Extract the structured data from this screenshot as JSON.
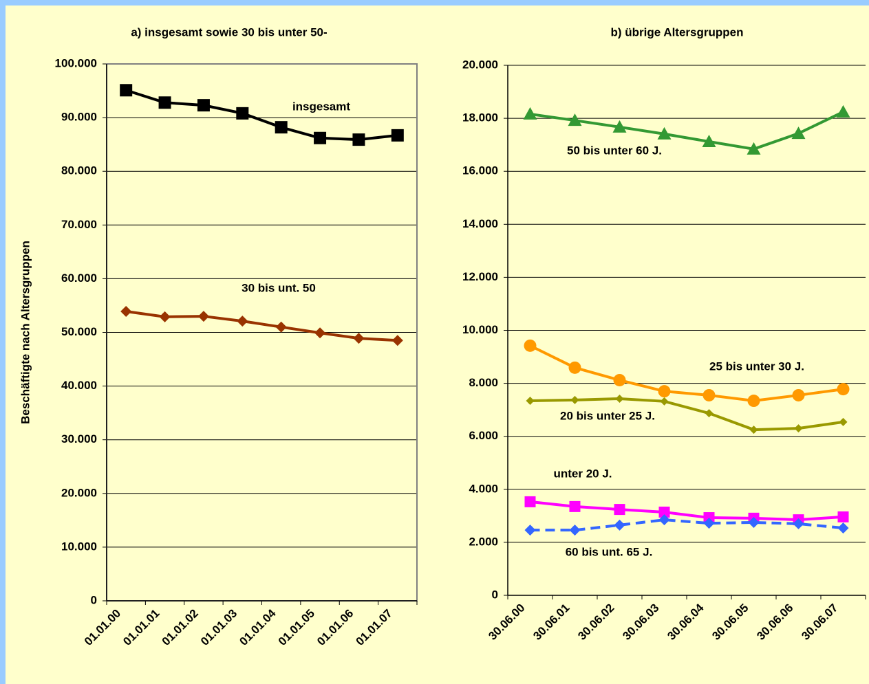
{
  "chart_data": [
    {
      "type": "line",
      "title": "a) insgesamt sowie 30 bis unter 50-",
      "y_label": "Beschäftigte nach Altersgruppen",
      "categories": [
        "01.01.00",
        "01.01.01",
        "01.01.02",
        "01.01.03",
        "01.01.04",
        "01.01.05",
        "01.01.06",
        "01.01.07"
      ],
      "ylim": [
        0,
        100000
      ],
      "yticks": [
        0,
        {
          "value": 10000,
          "label": "10.000"
        },
        {
          "value": 20000,
          "label": "20.000"
        },
        {
          "value": 30000,
          "label": "30.000"
        },
        {
          "value": 40000,
          "label": "40.000"
        },
        {
          "value": 50000,
          "label": "50.000"
        },
        {
          "value": 60000,
          "label": "60.000"
        },
        {
          "value": 70000,
          "label": "70.000"
        },
        {
          "value": 80000,
          "label": "80.000"
        },
        {
          "value": 90000,
          "label": "90.000"
        },
        {
          "value": 100000,
          "label": "100.000"
        }
      ],
      "grid": true,
      "series": [
        {
          "name": "insgesamt",
          "color": "#000000",
          "marker": "square",
          "values": [
            95100,
            92800,
            92300,
            90800,
            88200,
            86200,
            85900,
            86700
          ]
        },
        {
          "name": "30 bis unt. 50",
          "color": "#993300",
          "marker": "diamond",
          "values": [
            53900,
            52900,
            53000,
            52100,
            51000,
            49900,
            48900,
            48500
          ]
        }
      ]
    },
    {
      "type": "line",
      "title": "b) übrige Altersgruppen",
      "categories": [
        "30.06.00",
        "30.06.01",
        "30.06.02",
        "30.06.03",
        "30.06.04",
        "30.06.05",
        "30.06.06",
        "30.06.07"
      ],
      "ylim": [
        0,
        20000
      ],
      "yticks": [
        0,
        {
          "value": 2000,
          "label": "2.000"
        },
        {
          "value": 4000,
          "label": "4.000"
        },
        {
          "value": 6000,
          "label": "6.000"
        },
        {
          "value": 8000,
          "label": "8.000"
        },
        {
          "value": 10000,
          "label": "10.000"
        },
        {
          "value": 12000,
          "label": "12.000"
        },
        {
          "value": 14000,
          "label": "14.000"
        },
        {
          "value": 16000,
          "label": "16.000"
        },
        {
          "value": 18000,
          "label": "18.000"
        },
        {
          "value": 20000,
          "label": "20.000"
        }
      ],
      "grid": true,
      "series": [
        {
          "name": "50 bis unter 60 J.",
          "color": "#339933",
          "marker": "triangle",
          "values": [
            18160,
            17920,
            17670,
            17410,
            17120,
            16840,
            17430,
            18240
          ]
        },
        {
          "name": "25 bis unter 30 J.",
          "color": "#ff9900",
          "marker": "circle",
          "values": [
            9420,
            8590,
            8120,
            7700,
            7550,
            7340,
            7550,
            7780
          ]
        },
        {
          "name": "20 bis unter 25 J.",
          "color": "#999900",
          "marker": "small-diamond",
          "values": [
            7340,
            7370,
            7420,
            7320,
            6870,
            6250,
            6300,
            6540
          ]
        },
        {
          "name": "unter 20 J.",
          "color": "#ff00ff",
          "marker": "square",
          "values": [
            3530,
            3350,
            3240,
            3140,
            2930,
            2910,
            2850,
            2960
          ]
        },
        {
          "name": "60 bis unt. 65 J.",
          "color": "#3366ff",
          "marker": "diamond",
          "dashed": true,
          "values": [
            2460,
            2460,
            2650,
            2850,
            2720,
            2750,
            2700,
            2540
          ]
        }
      ]
    }
  ]
}
